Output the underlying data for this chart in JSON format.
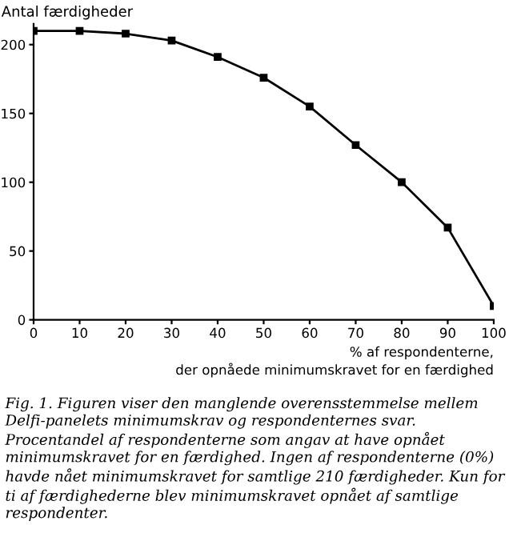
{
  "chart_data": {
    "type": "line",
    "ylabel": "Antal færdigheder",
    "xlabel": "% af respondenterne,\nder opnåede minimumskravet for en færdighed",
    "x": [
      0,
      10,
      20,
      30,
      40,
      50,
      60,
      70,
      80,
      90,
      100
    ],
    "series": [
      {
        "color": "#000000",
        "values": [
          210,
          210,
          208,
          203,
          191,
          176,
          155,
          127,
          100,
          67,
          10
        ]
      }
    ],
    "xlim": [
      0,
      100
    ],
    "xticks": [
      0,
      10,
      20,
      30,
      40,
      50,
      60,
      70,
      80,
      90,
      100
    ],
    "ylim": [
      0,
      215
    ],
    "yticks": [
      0,
      50,
      100,
      150,
      200
    ],
    "grid": false,
    "legend": false,
    "marker": "square",
    "line_style": "solid",
    "annotations": [
      "Fig. 1. Figuren viser den manglende overensstemmelse mellem Delfi-panelets minimumskrav og respondenternes svar. Procentandel af respondenterne som angav at have opnået minimumskravet for en færdighed. Ingen af respondenterne (0%) havde nået minimumskravet for samtlige 210 færdigheder. Kun for ti af færdighederne blev minimumskravet opnået af samtlige respondenter."
    ]
  }
}
